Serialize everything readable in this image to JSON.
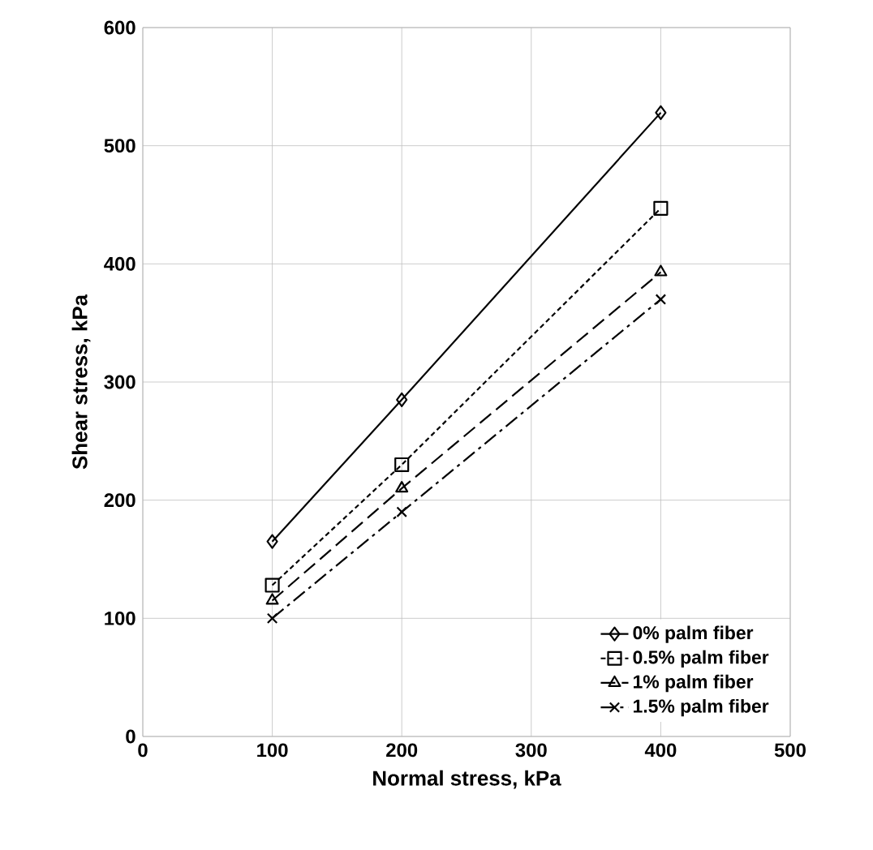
{
  "chart_data": {
    "type": "line",
    "xlabel": "Normal stress, kPa",
    "ylabel": "Shear stress, kPa",
    "x": [
      100,
      200,
      400
    ],
    "series": [
      {
        "name": "0% palm fiber",
        "color": "#000000",
        "marker": "diamond",
        "line_style": "solid",
        "values": [
          165,
          285,
          528
        ]
      },
      {
        "name": "0.5% palm fiber",
        "color": "#000000",
        "marker": "square",
        "line_style": "dotted",
        "values": [
          128,
          230,
          447
        ]
      },
      {
        "name": "1% palm fiber",
        "color": "#000000",
        "marker": "triangle",
        "line_style": "dashed",
        "values": [
          115,
          210,
          393
        ]
      },
      {
        "name": "1.5% palm fiber",
        "color": "#000000",
        "marker": "cross",
        "line_style": "dashdot",
        "values": [
          100,
          190,
          370
        ]
      }
    ],
    "xlim": [
      0,
      500
    ],
    "xticks": [
      0,
      100,
      200,
      300,
      400,
      500
    ],
    "ylim": [
      0,
      600
    ],
    "yticks": [
      0,
      100,
      200,
      300,
      400,
      500,
      600
    ],
    "grid": true,
    "legend": "bottom right"
  }
}
